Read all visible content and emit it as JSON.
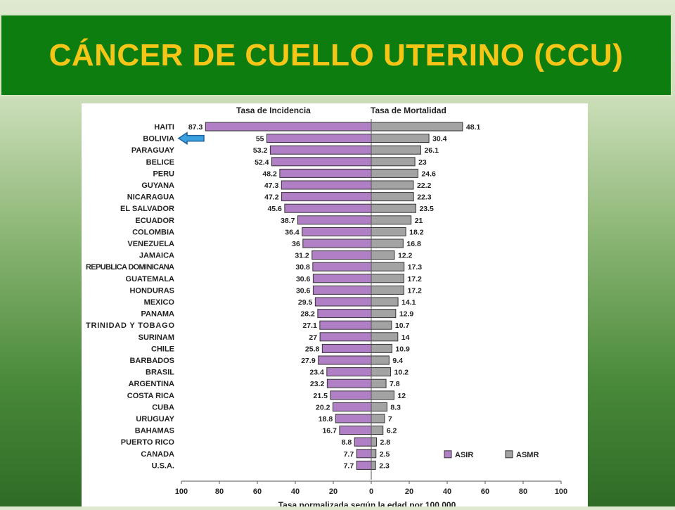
{
  "slide": {
    "title": "CÁNCER DE CUELLO UTERINO  (CCU)"
  },
  "chart_data": {
    "type": "bar",
    "orientation": "horizontal-diverging",
    "left_header": "Tasa de Incidencia",
    "right_header": "Tasa de Mortalidad",
    "xlabel": "Tasa normalizada según la edad por 100,000",
    "xlim": [
      -100,
      100
    ],
    "xticks": [
      "100",
      "80",
      "60",
      "40",
      "20",
      "0",
      "20",
      "40",
      "60",
      "80",
      "100"
    ],
    "categories": [
      "HAITI",
      "BOLIVIA",
      "PARAGUAY",
      "BELICE",
      "PERU",
      "GUYANA",
      "NICARAGUA",
      "EL SALVADOR",
      "ECUADOR",
      "COLOMBIA",
      "VENEZUELA",
      "JAMAICA",
      "REPUBLICA DOMINICANA",
      "GUATEMALA",
      "HONDURAS",
      "MEXICO",
      "PANAMA",
      "TRINIDAD Y TOBAGO",
      "SURINAM",
      "CHILE",
      "BARBADOS",
      "BRASIL",
      "ARGENTINA",
      "COSTA RICA",
      "CUBA",
      "URUGUAY",
      "BAHAMAS",
      "PUERTO RICO",
      "CANADA",
      "U.S.A."
    ],
    "series": [
      {
        "name": "ASIR",
        "side": "left",
        "color": "#b17fc6",
        "values": [
          87.3,
          55,
          53.2,
          52.4,
          48.2,
          47.3,
          47.2,
          45.6,
          38.7,
          36.4,
          36,
          31.2,
          30.8,
          30.6,
          30.6,
          29.5,
          28.2,
          27.1,
          27,
          25.8,
          27.9,
          23.4,
          23.2,
          21.5,
          20.2,
          18.8,
          16.7,
          8.8,
          7.7,
          7.7
        ],
        "labels": [
          "87.3",
          "55",
          "53.2",
          "52.4",
          "48.2",
          "47.3",
          "47.2",
          "45.6",
          "38.7",
          "36.4",
          "36",
          "31.2",
          "30.8",
          "30.6",
          "30.6",
          "29.5",
          "28.2",
          "27.1",
          "27",
          "25.8",
          "27.9",
          "23.4",
          "23.2",
          "21.5",
          "20.2",
          "18.8",
          "16.7",
          "8.8",
          "7.7",
          "7.7"
        ]
      },
      {
        "name": "ASMR",
        "side": "right",
        "color": "#a3a3a3",
        "values": [
          48.1,
          30.4,
          26.1,
          23,
          24.6,
          22.2,
          22.3,
          23.5,
          21,
          18.2,
          16.8,
          12.2,
          17.3,
          17.2,
          17.2,
          14.1,
          12.9,
          10.7,
          14,
          10.9,
          9.4,
          10.2,
          7.8,
          12,
          8.3,
          7,
          6.2,
          2.8,
          2.5,
          2.3
        ],
        "labels": [
          "48.1",
          "30.4",
          "26.1",
          "23",
          "24.6",
          "22.2",
          "22.3",
          "23.5",
          "21",
          "18.2",
          "16.8",
          "12.2",
          "17.3",
          "17.2",
          "17.2",
          "14.1",
          "12.9",
          "10.7",
          "14",
          "10.9",
          "9.4",
          "10.2",
          "7.8",
          "12",
          "8.3",
          "7",
          "6.2",
          "2.8",
          "2.5",
          "2.3"
        ]
      }
    ],
    "legend_position": "bottom-right",
    "annotation": {
      "type": "arrow",
      "target": "BOLIVIA",
      "color": "#3aa0e0"
    },
    "grid": false
  }
}
